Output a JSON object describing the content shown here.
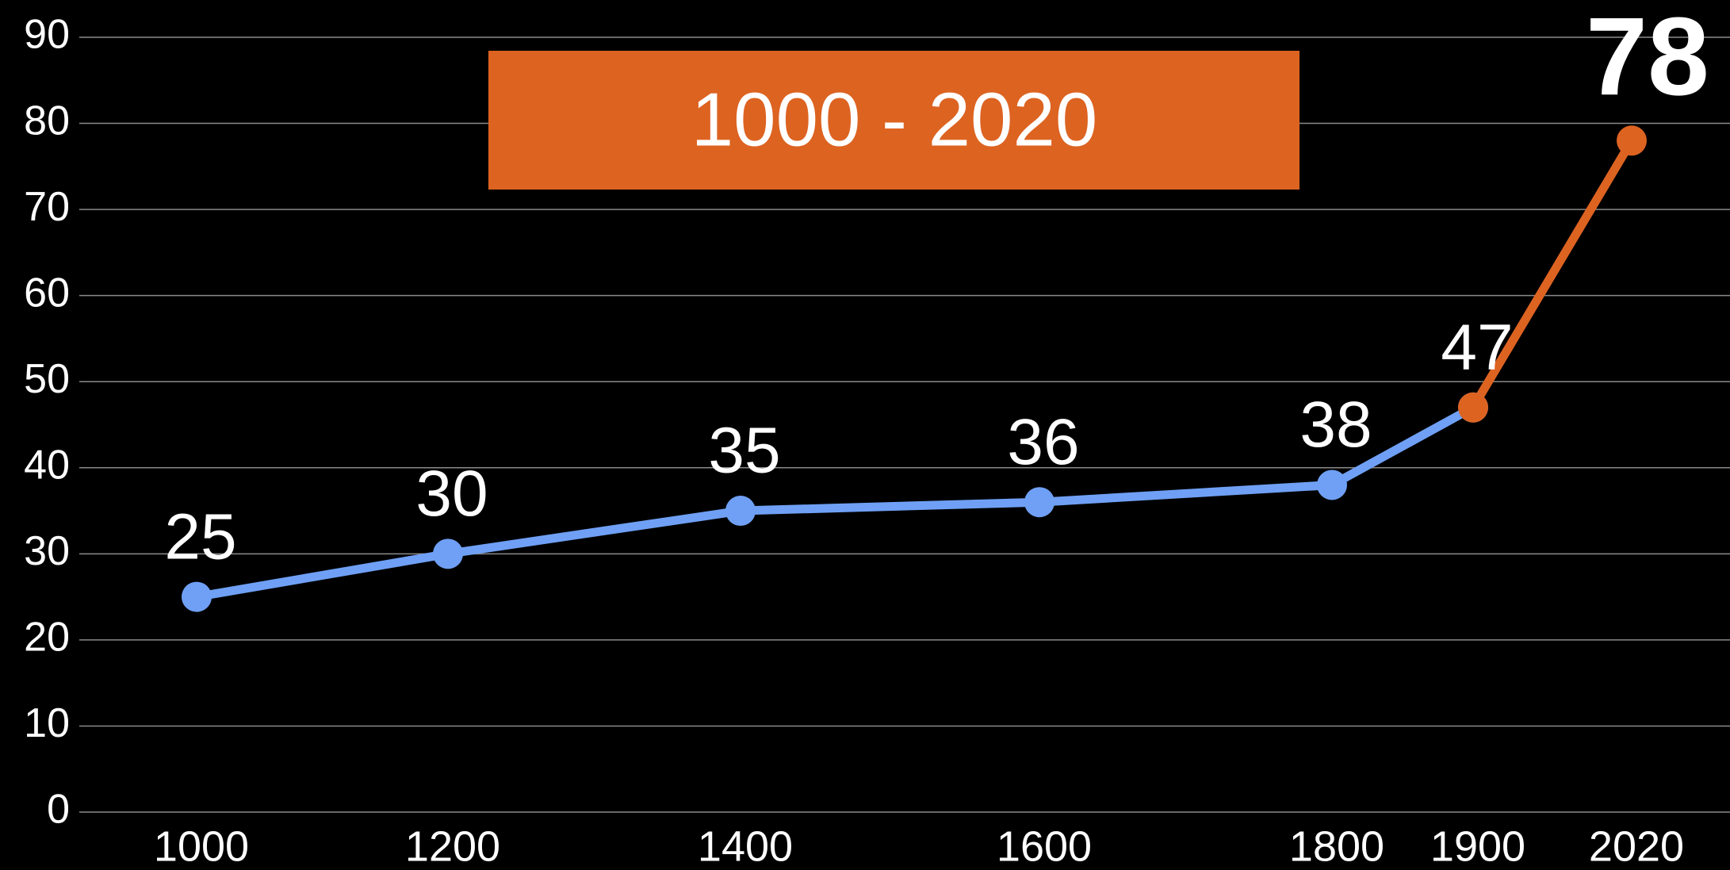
{
  "chart_data": {
    "type": "line",
    "categories": [
      "1000",
      "1200",
      "1400",
      "1600",
      "1800",
      "1900",
      "2020"
    ],
    "series": [
      {
        "color": "#6fa0f5",
        "values": [
          25,
          30,
          35,
          36,
          38,
          47,
          null
        ]
      },
      {
        "color": "#dd6321",
        "values": [
          null,
          null,
          null,
          null,
          null,
          47,
          78
        ]
      }
    ],
    "annotation": "1000 - 2020",
    "annotation_color": "#dd6321",
    "ylim": [
      0,
      90
    ],
    "yticks": [
      0,
      10,
      20,
      30,
      40,
      50,
      60,
      70,
      80,
      90
    ],
    "grid": true
  }
}
